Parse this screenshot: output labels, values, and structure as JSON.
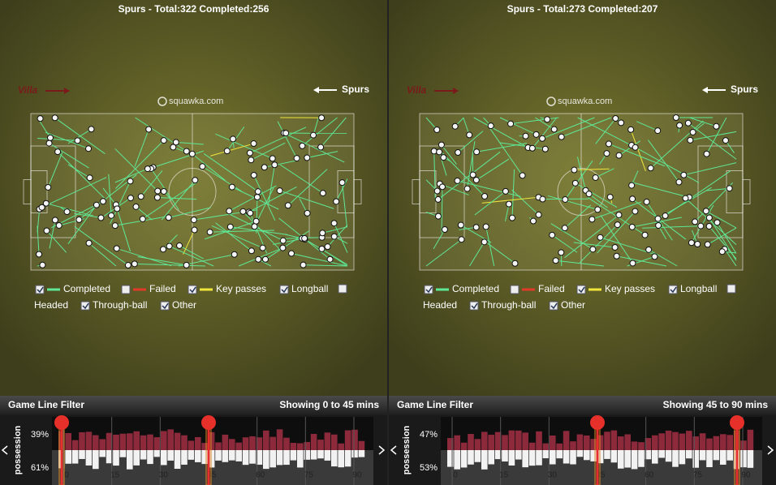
{
  "panels": [
    {
      "title": "Spurs - Total:322 Completed:256",
      "left_team": "Villa",
      "right_team": "Spurs",
      "watermark": "squawka.com",
      "legend": [
        "Completed",
        "Failed",
        "Key passes",
        "Longball",
        "Headed",
        "Through-ball",
        "Other"
      ],
      "filter": {
        "label": "Game Line Filter",
        "showing": "Showing 0 to 45 mins",
        "possession_label": "possession",
        "home": "39%",
        "away": "61%",
        "ticks": [
          "0",
          "15",
          "30",
          "45",
          "60",
          "75",
          "90"
        ]
      }
    },
    {
      "title": "Spurs - Total:273 Completed:207",
      "left_team": "Villa",
      "right_team": "Spurs",
      "watermark": "squawka.com",
      "legend": [
        "Completed",
        "Failed",
        "Key passes",
        "Longball",
        "Headed",
        "Through-ball",
        "Other"
      ],
      "filter": {
        "label": "Game Line Filter",
        "showing": "Showing 45 to 90 mins",
        "possession_label": "possession",
        "home": "47%",
        "away": "53%",
        "ticks": [
          "0",
          "15",
          "30",
          "45",
          "60",
          "75",
          "90"
        ]
      }
    }
  ]
}
